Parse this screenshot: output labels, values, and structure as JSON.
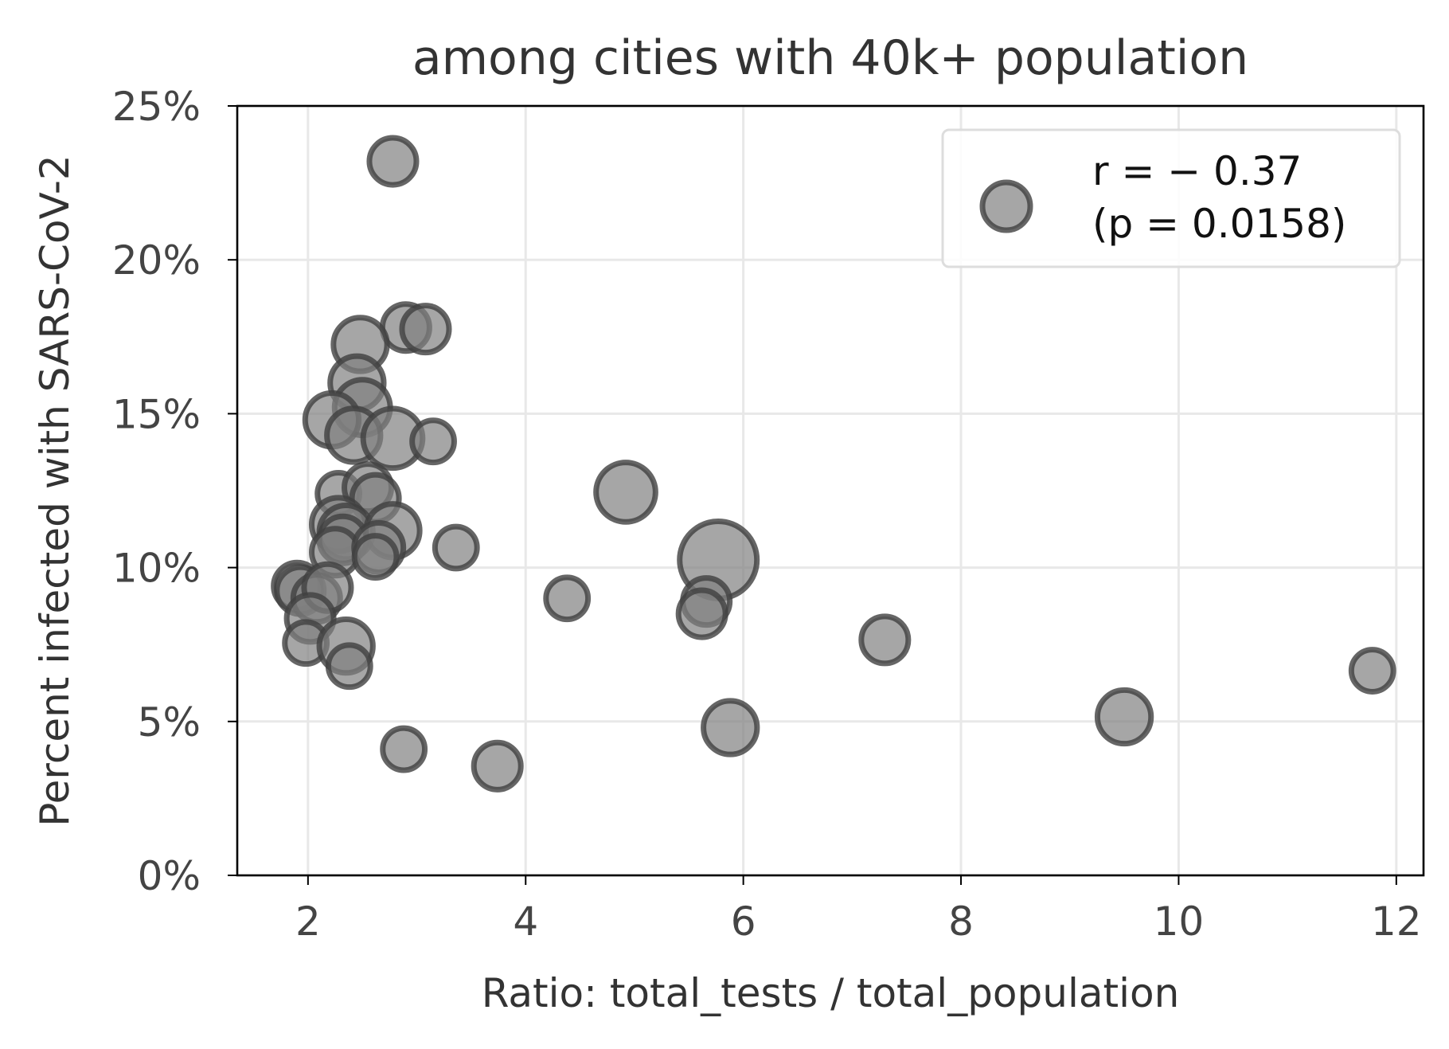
{
  "chart_data": {
    "type": "scatter",
    "title": "among cities with 40k+ population",
    "xlabel": "Ratio: total_tests / total_population",
    "ylabel": "Percent infected with SARS-CoV-2",
    "xlim": [
      1.35,
      12.25
    ],
    "ylim": [
      0,
      25
    ],
    "x_ticks": [
      2,
      4,
      6,
      8,
      10,
      12
    ],
    "x_tick_labels": [
      "2",
      "4",
      "6",
      "8",
      "10",
      "12"
    ],
    "y_ticks": [
      0,
      5,
      10,
      15,
      20,
      25
    ],
    "y_tick_labels": [
      "0%",
      "5%",
      "10%",
      "15%",
      "20%",
      "25%"
    ],
    "grid": true,
    "legend": {
      "placement": "top-right",
      "line1": "r = − 0.37",
      "line2": "(p = 0.0158)"
    },
    "colors": {
      "marker_fill": "#808080",
      "marker_edge": "#404040",
      "grid": "#e8e8e8"
    },
    "points": [
      {
        "x": 2.78,
        "y": 23.2,
        "size": 500
      },
      {
        "x": 2.9,
        "y": 17.8,
        "size": 500
      },
      {
        "x": 3.08,
        "y": 17.75,
        "size": 500
      },
      {
        "x": 2.48,
        "y": 17.25,
        "size": 650
      },
      {
        "x": 2.45,
        "y": 16.0,
        "size": 650
      },
      {
        "x": 2.5,
        "y": 15.2,
        "size": 700
      },
      {
        "x": 2.22,
        "y": 14.8,
        "size": 650
      },
      {
        "x": 2.42,
        "y": 14.3,
        "size": 650
      },
      {
        "x": 2.78,
        "y": 14.2,
        "size": 800
      },
      {
        "x": 3.15,
        "y": 14.1,
        "size": 400
      },
      {
        "x": 2.28,
        "y": 12.4,
        "size": 400
      },
      {
        "x": 2.55,
        "y": 12.6,
        "size": 500
      },
      {
        "x": 2.62,
        "y": 12.25,
        "size": 500
      },
      {
        "x": 2.28,
        "y": 11.4,
        "size": 650
      },
      {
        "x": 2.35,
        "y": 11.15,
        "size": 650
      },
      {
        "x": 2.32,
        "y": 10.9,
        "size": 500
      },
      {
        "x": 2.25,
        "y": 10.5,
        "size": 500
      },
      {
        "x": 2.78,
        "y": 11.2,
        "size": 650
      },
      {
        "x": 2.65,
        "y": 10.65,
        "size": 550
      },
      {
        "x": 2.62,
        "y": 10.35,
        "size": 400
      },
      {
        "x": 1.9,
        "y": 9.4,
        "size": 500
      },
      {
        "x": 1.93,
        "y": 9.25,
        "size": 500
      },
      {
        "x": 2.08,
        "y": 9.0,
        "size": 500
      },
      {
        "x": 2.18,
        "y": 9.35,
        "size": 500
      },
      {
        "x": 2.02,
        "y": 8.35,
        "size": 500
      },
      {
        "x": 1.98,
        "y": 7.55,
        "size": 400
      },
      {
        "x": 2.35,
        "y": 7.45,
        "size": 650
      },
      {
        "x": 2.38,
        "y": 6.8,
        "size": 400
      },
      {
        "x": 3.36,
        "y": 10.65,
        "size": 400
      },
      {
        "x": 4.92,
        "y": 12.45,
        "size": 800
      },
      {
        "x": 5.77,
        "y": 10.25,
        "size": 1350
      },
      {
        "x": 4.38,
        "y": 9.0,
        "size": 400
      },
      {
        "x": 5.66,
        "y": 8.9,
        "size": 500
      },
      {
        "x": 5.62,
        "y": 8.5,
        "size": 500
      },
      {
        "x": 7.3,
        "y": 7.65,
        "size": 500
      },
      {
        "x": 11.78,
        "y": 6.65,
        "size": 400
      },
      {
        "x": 9.5,
        "y": 5.15,
        "size": 650
      },
      {
        "x": 5.88,
        "y": 4.8,
        "size": 650
      },
      {
        "x": 2.88,
        "y": 4.1,
        "size": 400
      },
      {
        "x": 3.74,
        "y": 3.55,
        "size": 500
      }
    ]
  }
}
